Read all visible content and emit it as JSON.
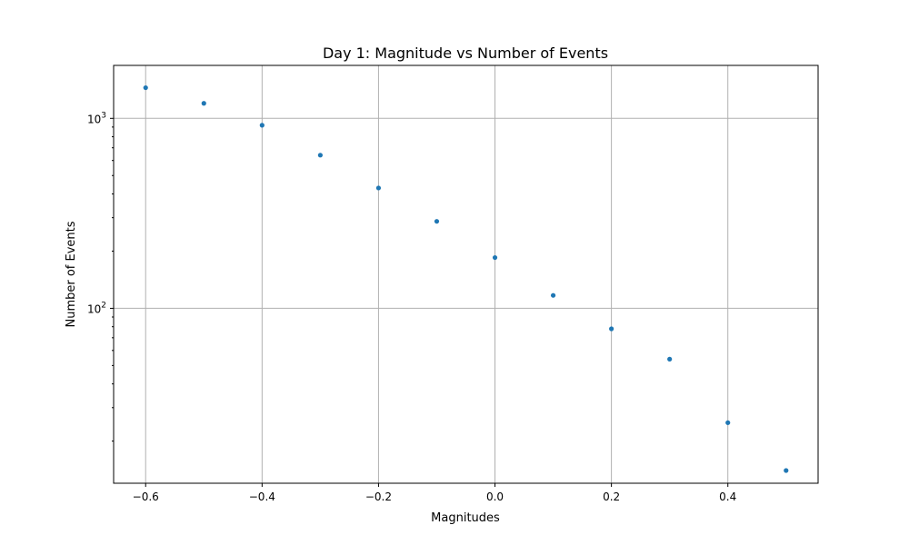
{
  "chart_data": {
    "type": "scatter",
    "title": "Day 1: Magnitude vs Number of Events",
    "xlabel": "Magnitudes",
    "ylabel": "Number of Events",
    "x": [
      -0.6,
      -0.5,
      -0.4,
      -0.3,
      -0.2,
      -0.1,
      0.0,
      0.1,
      0.2,
      0.3,
      0.4,
      0.5
    ],
    "y": [
      1450,
      1200,
      920,
      640,
      430,
      287,
      185,
      117,
      78,
      54,
      25,
      14
    ],
    "xlim": [
      -0.655,
      0.555
    ],
    "ylim": [
      12.0,
      1900
    ],
    "yscale": "log",
    "xticks": [
      -0.6,
      -0.4,
      -0.2,
      0.0,
      0.2,
      0.4
    ],
    "xtick_labels": [
      "−0.6",
      "−0.4",
      "−0.2",
      "0.0",
      "0.2",
      "0.4"
    ],
    "yticks": [
      100,
      1000
    ],
    "ytick_labels": [
      {
        "base": "10",
        "exp": "2"
      },
      {
        "base": "10",
        "exp": "3"
      }
    ],
    "grid": true,
    "marker_color": "#1f77b4"
  }
}
